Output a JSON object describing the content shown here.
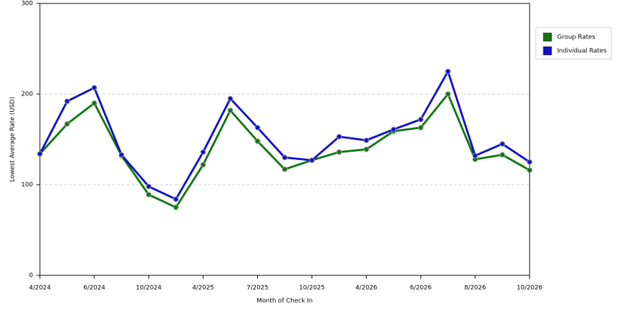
{
  "chart_data": {
    "type": "line",
    "x_label": "Month of Check In",
    "y_label": "Lowest Average Rate (USD)",
    "categories": [
      "4/2024",
      null,
      "6/2024",
      null,
      "10/2024",
      null,
      "4/2025",
      null,
      "7/2025",
      null,
      "10/2025",
      null,
      "4/2026",
      null,
      "6/2026",
      null,
      "8/2026",
      null,
      "10/2026"
    ],
    "series": [
      {
        "name": "Group Rates",
        "color": "#117711",
        "values": [
          134,
          167,
          190,
          132,
          89,
          75,
          122,
          182,
          148,
          117,
          127,
          136,
          139,
          159,
          163,
          200,
          128,
          133,
          116
        ]
      },
      {
        "name": "Individual Rates",
        "color": "#1111cc",
        "values": [
          134,
          192,
          207,
          133,
          98,
          84,
          136,
          195,
          163,
          130,
          127,
          153,
          149,
          161,
          172,
          225,
          132,
          145,
          125
        ]
      }
    ],
    "ylim": [
      0,
      300
    ],
    "yticks": [
      0,
      100,
      200,
      300
    ],
    "grid": true,
    "legend": "top-right"
  }
}
